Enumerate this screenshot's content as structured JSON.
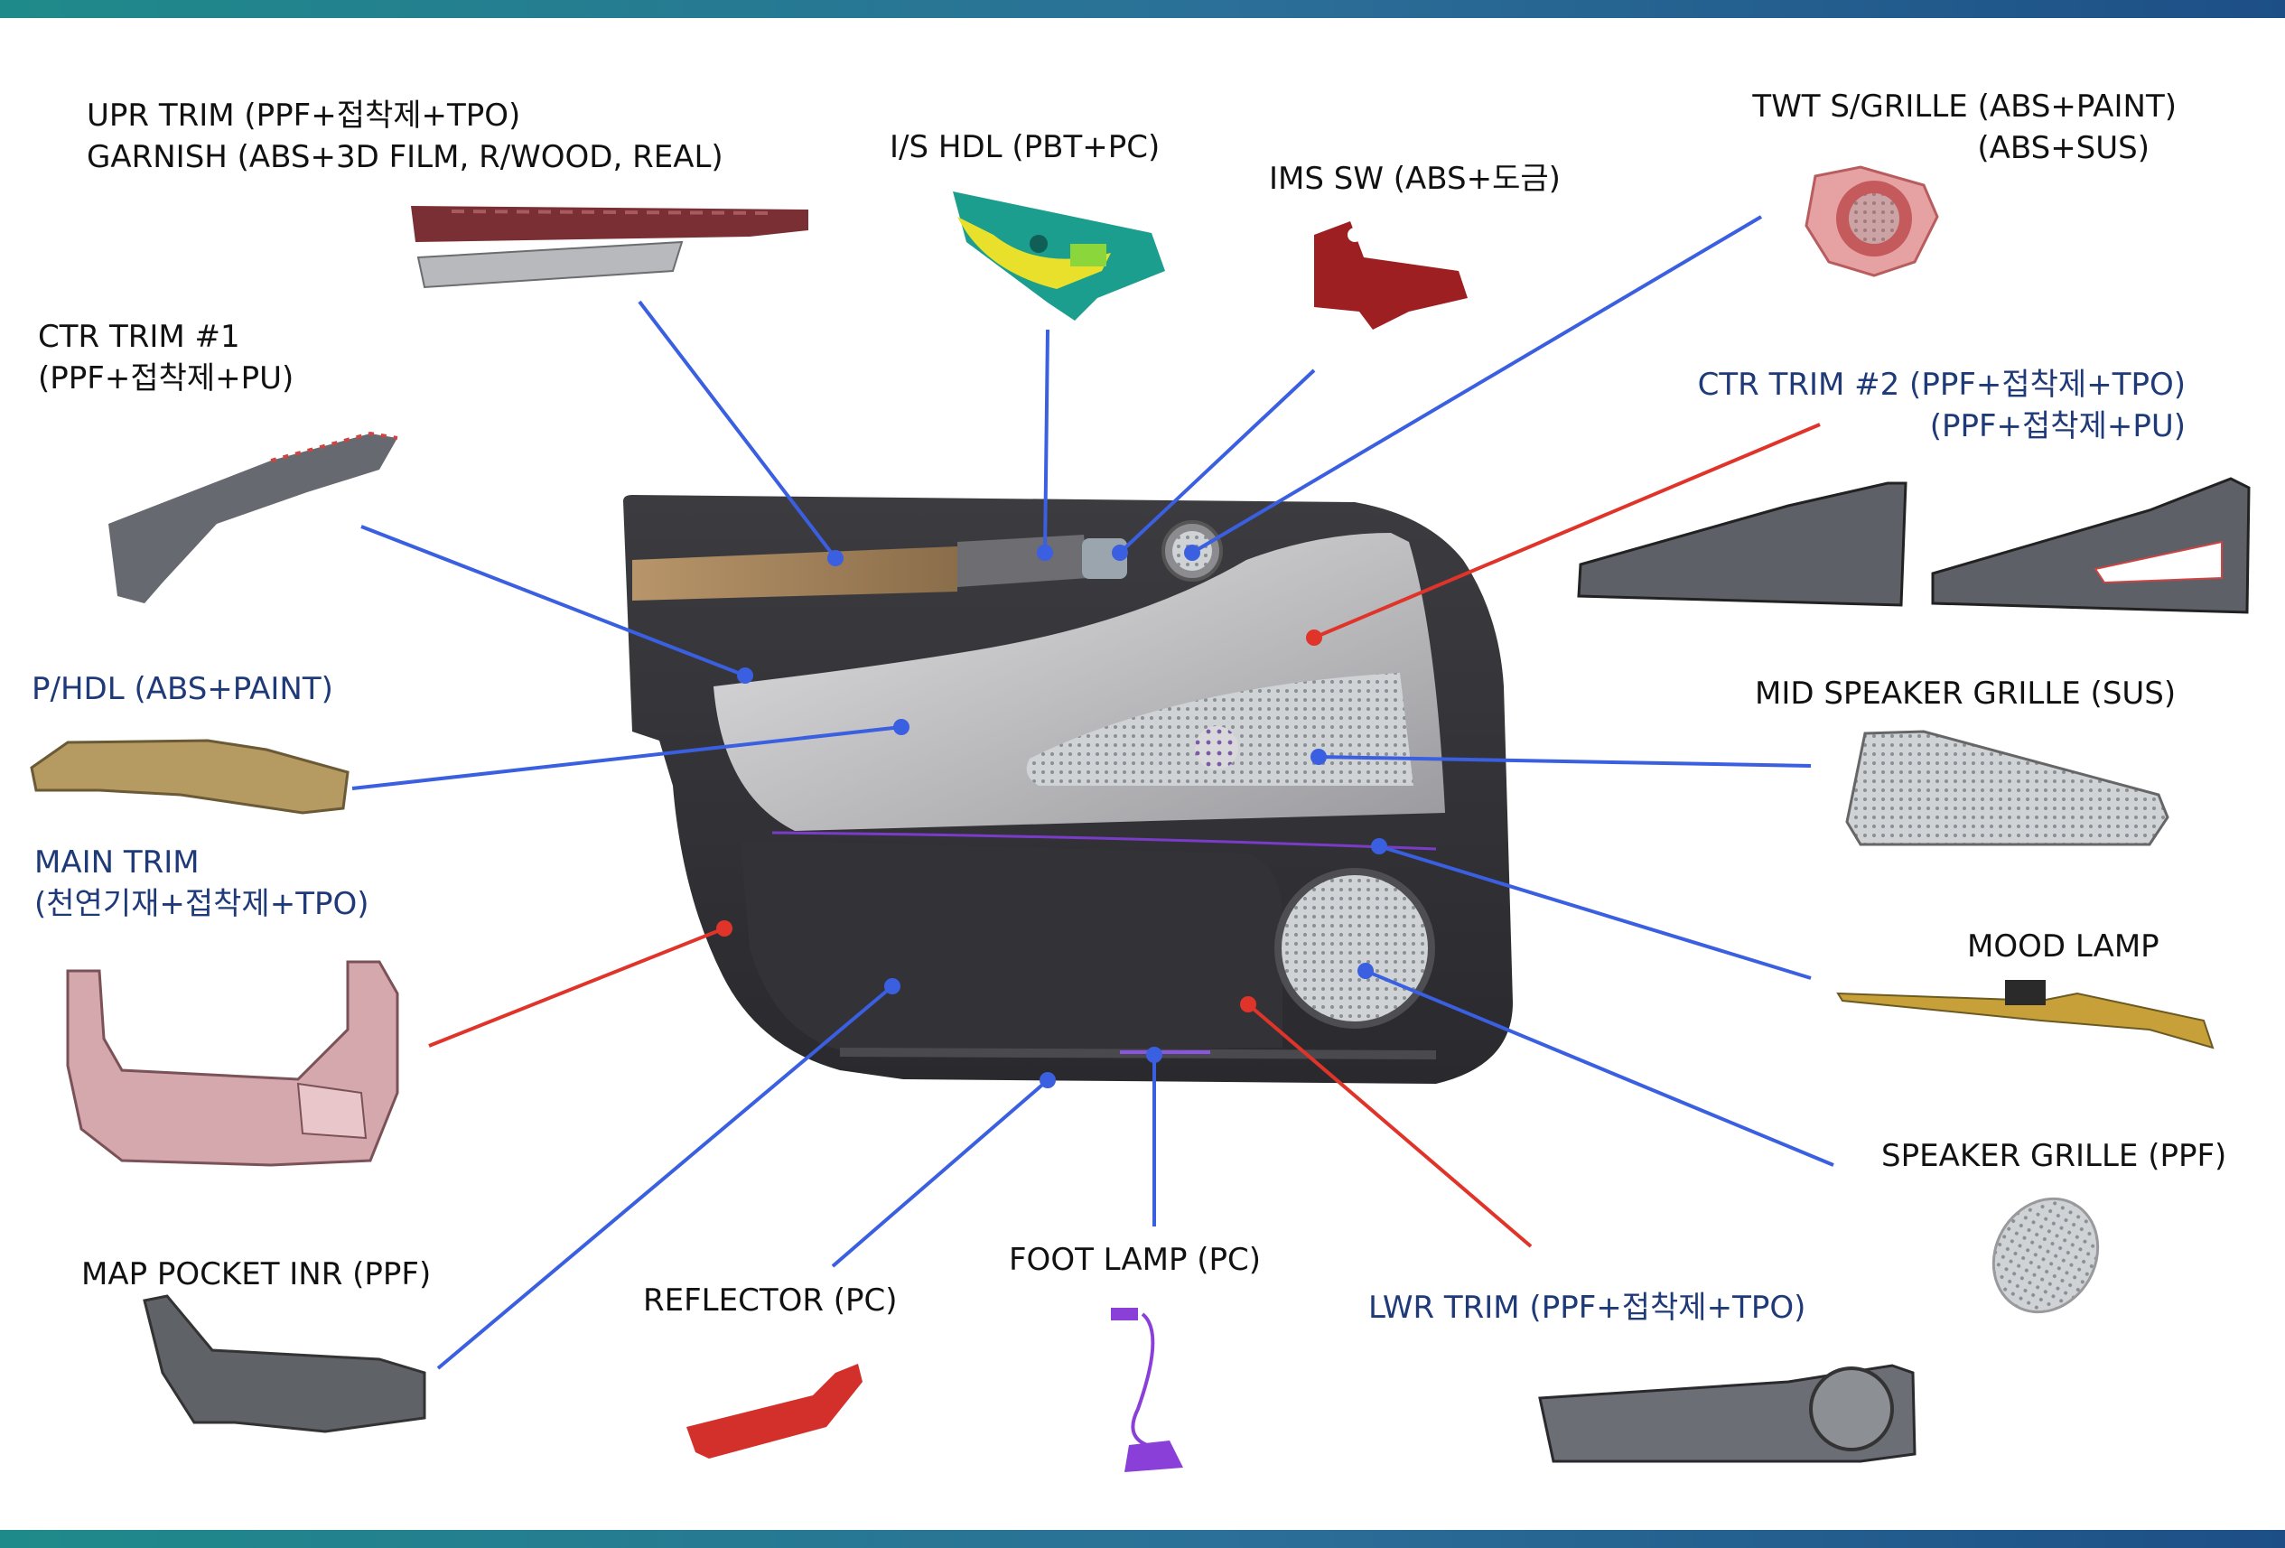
{
  "colors": {
    "leader_blue": "#3a5fe0",
    "leader_red": "#e0342a",
    "label_dark": "#111111",
    "label_blue": "#1f3a78",
    "bar_start": "#1f8a8a",
    "bar_end": "#1d4f86"
  },
  "labels": {
    "upr_trim": "UPR TRIM (PPF+접착제+TPO)",
    "garnish": "GARNISH (ABS+3D FILM, R/WOOD, REAL)",
    "is_hdl": "I/S HDL (PBT+PC)",
    "ims_sw": "IMS SW (ABS+도금)",
    "twt_grille_1": "TWT S/GRILLE (ABS+PAINT)",
    "twt_grille_2": "(ABS+SUS)",
    "ctr_trim1_1": "CTR TRIM #1",
    "ctr_trim1_2": "(PPF+접착제+PU)",
    "ctr_trim2_1": "CTR TRIM #2 (PPF+접착제+TPO)",
    "ctr_trim2_2": "(PPF+접착제+PU)",
    "p_hdl": "P/HDL (ABS+PAINT)",
    "mid_speaker": "MID SPEAKER GRILLE (SUS)",
    "main_trim_1": "MAIN TRIM",
    "main_trim_2": "(천연기재+접착제+TPO)",
    "mood_lamp": "MOOD LAMP",
    "speaker_grille": "SPEAKER GRILLE (PPF)",
    "map_pocket": "MAP POCKET INR (PPF)",
    "reflector": "REFLECTOR (PC)",
    "foot_lamp": "FOOT LAMP (PC)",
    "lwr_trim": "LWR TRIM (PPF+접착제+TPO)"
  }
}
